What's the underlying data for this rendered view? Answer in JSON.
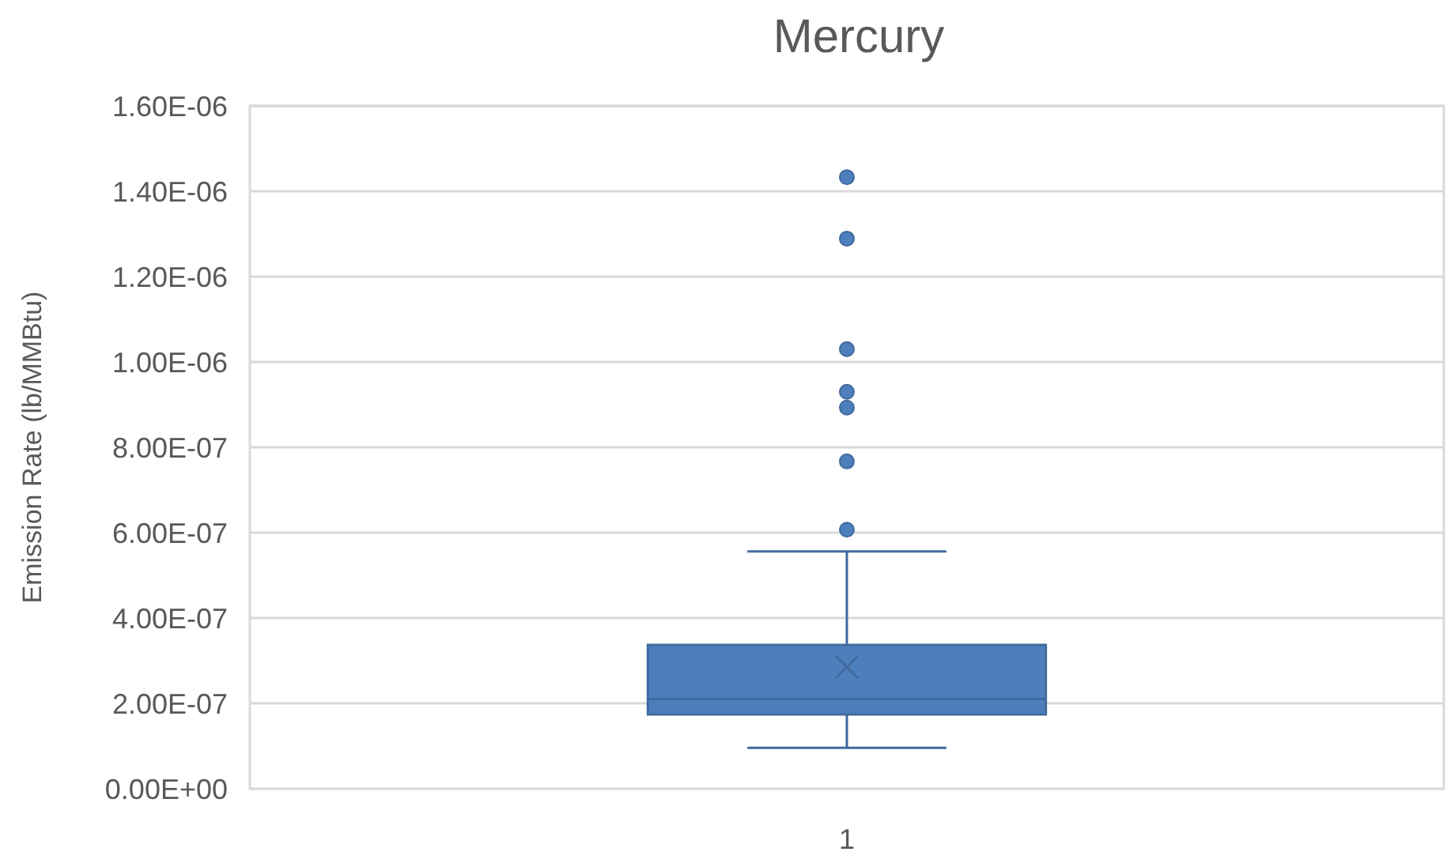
{
  "chart_data": {
    "type": "box",
    "title": "Mercury",
    "ylabel": "Emission Rate (lb/MMBtu)",
    "categories": [
      "1"
    ],
    "boxes": [
      {
        "low": 9.6e-08,
        "q1": 1.74e-07,
        "median": 2.1e-07,
        "q3": 3.37e-07,
        "high": 5.56e-07,
        "mean": 2.85e-07,
        "outliers": [
          6.07e-07,
          7.67e-07,
          8.93e-07,
          9.3e-07,
          1.03e-06,
          1.289e-06,
          1.433e-06
        ]
      }
    ],
    "color": "#4e7fbd",
    "ylim": [
      0,
      1.6e-06
    ],
    "yticks": [
      {
        "value": 0,
        "label": "0.00E+00"
      },
      {
        "value": 2e-07,
        "label": "2.00E-07"
      },
      {
        "value": 4e-07,
        "label": "4.00E-07"
      },
      {
        "value": 6e-07,
        "label": "6.00E-07"
      },
      {
        "value": 8e-07,
        "label": "8.00E-07"
      },
      {
        "value": 1e-06,
        "label": "1.00E-06"
      },
      {
        "value": 1.2e-06,
        "label": "1.20E-06"
      },
      {
        "value": 1.4e-06,
        "label": "1.40E-06"
      },
      {
        "value": 1.6e-06,
        "label": "1.60E-06"
      }
    ],
    "grid": "y"
  }
}
